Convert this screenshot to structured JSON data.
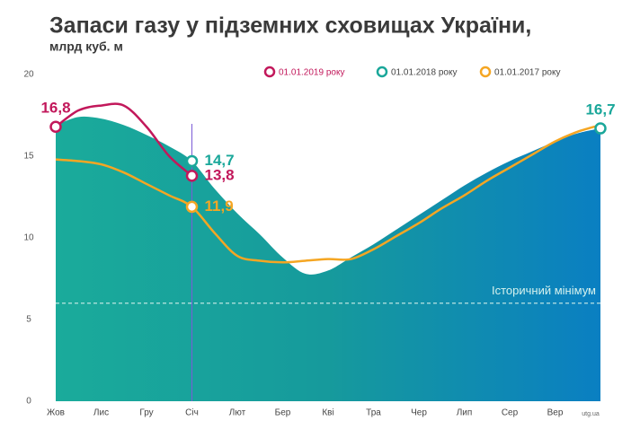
{
  "chart_data": {
    "type": "line",
    "title": "Запаси газу у підземних сховищах України,",
    "subtitle": "млрд куб. м",
    "source": "utg.ua",
    "categories": [
      "Жов",
      null,
      "Лис",
      null,
      "Гру",
      null,
      "Січ",
      null,
      "Лют",
      null,
      "Бер",
      null,
      "Кві",
      null,
      "Тра",
      null,
      "Чер",
      null,
      "Лип",
      null,
      "Сер",
      null,
      "Вер",
      null,
      null
    ],
    "ylim": [
      0,
      20
    ],
    "yticks": [
      0,
      5,
      10,
      15,
      20
    ],
    "reference_line": {
      "value": 6,
      "label": "Історичний мінімум"
    },
    "series": [
      {
        "name": "01.01.2019 року",
        "color": "#c2185b",
        "values": [
          16.8,
          17.8,
          18.1,
          18.1,
          16.8,
          15.0,
          13.8,
          null,
          null,
          null,
          null,
          null,
          null,
          null,
          null,
          null,
          null,
          null,
          null,
          null,
          null,
          null,
          null,
          null,
          null
        ],
        "value_labels": [
          "16,8",
          null,
          null,
          null,
          null,
          null,
          "13,8",
          null,
          null,
          null,
          null,
          null,
          null,
          null,
          null,
          null,
          null,
          null,
          null,
          null,
          null,
          null,
          null,
          null,
          null
        ]
      },
      {
        "name": "01.01.2018 року",
        "color": "#1aa79a",
        "fill": true,
        "values": [
          16.9,
          17.4,
          17.3,
          16.9,
          16.3,
          15.6,
          14.7,
          13.0,
          11.5,
          10.2,
          8.8,
          7.8,
          8.0,
          8.8,
          9.6,
          10.5,
          11.4,
          12.3,
          13.2,
          14.0,
          14.7,
          15.3,
          15.9,
          16.4,
          16.7
        ],
        "value_labels": [
          null,
          null,
          null,
          null,
          null,
          null,
          "14,7",
          null,
          null,
          null,
          null,
          null,
          null,
          null,
          null,
          null,
          null,
          null,
          null,
          null,
          null,
          null,
          null,
          null,
          "16,7"
        ]
      },
      {
        "name": "01.01.2017 року",
        "color": "#f5a623",
        "values": [
          14.8,
          14.7,
          14.5,
          14.0,
          13.3,
          12.6,
          11.9,
          10.3,
          8.9,
          8.6,
          8.5,
          8.6,
          8.7,
          8.7,
          9.3,
          10.1,
          10.9,
          11.8,
          12.6,
          13.5,
          14.3,
          15.1,
          15.9,
          16.5,
          16.9
        ],
        "value_labels": [
          null,
          null,
          null,
          null,
          null,
          null,
          "11,9",
          null,
          null,
          null,
          null,
          null,
          null,
          null,
          null,
          null,
          null,
          null,
          null,
          null,
          null,
          null,
          null,
          null,
          null
        ]
      }
    ]
  }
}
